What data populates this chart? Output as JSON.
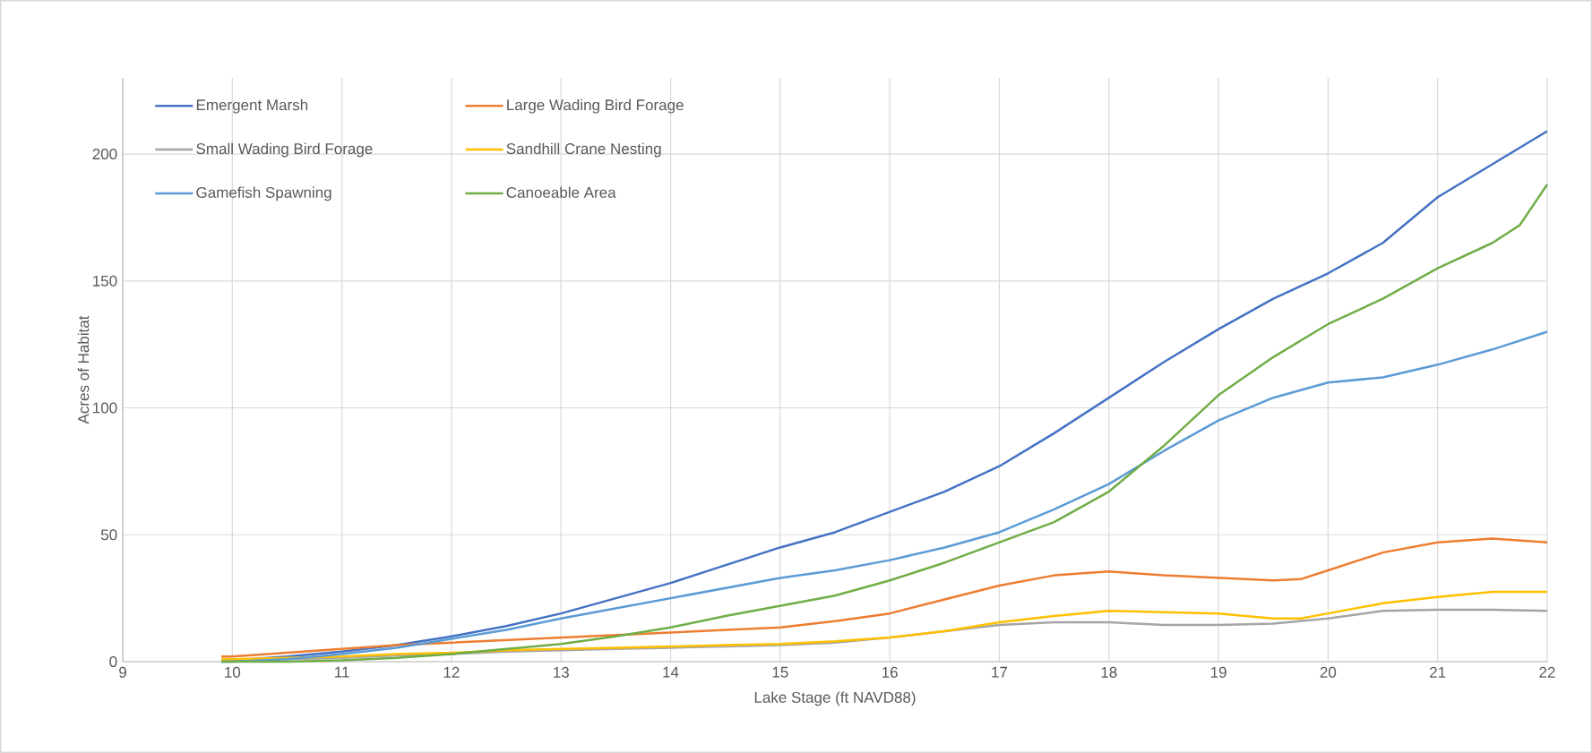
{
  "chart_data": {
    "type": "line",
    "xlabel": "Lake Stage (ft NAVD88)",
    "ylabel": "Acres of Habitat",
    "xlim": [
      9,
      22
    ],
    "xticks": [
      9,
      10,
      11,
      12,
      13,
      14,
      15,
      16,
      17,
      18,
      19,
      20,
      21,
      22
    ],
    "ylim": [
      0,
      230
    ],
    "yticks": [
      0,
      50,
      100,
      150,
      200
    ],
    "grid": true,
    "legend": "top left",
    "marker": "none",
    "line_style": "solid",
    "series": [
      {
        "name": "Emergent Marsh",
        "color": "#4472c4",
        "x": [
          9.9,
          10,
          10.5,
          11,
          11.5,
          12,
          12.5,
          13,
          13.5,
          14,
          14.5,
          15,
          15.5,
          16,
          16.5,
          17,
          17.5,
          18,
          18.5,
          19,
          19.5,
          20,
          20.5,
          21,
          21.5,
          22
        ],
        "values": [
          0,
          0.5,
          2,
          4,
          6.5,
          10,
          14,
          19,
          25,
          31,
          38,
          45,
          51,
          59,
          67,
          77,
          90,
          104,
          118,
          131,
          143,
          153,
          165,
          183,
          196,
          209
        ]
      },
      {
        "name": "Large Wading Bird Forage",
        "color": "#ed7d31",
        "x": [
          9.9,
          10,
          10.5,
          11,
          11.5,
          12,
          12.5,
          13,
          13.5,
          14,
          14.5,
          15,
          15.5,
          16,
          16.5,
          17,
          17.5,
          18,
          18.5,
          19,
          19.5,
          19.75,
          20,
          20.5,
          21,
          21.5,
          22
        ],
        "values": [
          2,
          2,
          3.5,
          5,
          6.5,
          7.5,
          8.5,
          9.5,
          10.5,
          11.5,
          12.5,
          13.5,
          16,
          19,
          24.5,
          30,
          34,
          35.5,
          34,
          33,
          32,
          32.5,
          36,
          43,
          47,
          48.5,
          47
        ]
      },
      {
        "name": "Small Wading Bird Forage",
        "color": "#a5a5a5",
        "x": [
          9.9,
          10,
          10.5,
          11,
          11.5,
          12,
          12.5,
          13,
          13.5,
          14,
          14.5,
          15,
          15.5,
          16,
          16.5,
          17,
          17.5,
          18,
          18.5,
          19,
          19.5,
          20,
          20.5,
          21,
          21.5,
          22
        ],
        "values": [
          0.5,
          0.5,
          1,
          1.5,
          2.5,
          3,
          4,
          4.5,
          5,
          5.5,
          6,
          6.5,
          7.5,
          9.5,
          12,
          14.5,
          15.5,
          15.5,
          14.5,
          14.5,
          15,
          17,
          20,
          20.5,
          20.5,
          20
        ]
      },
      {
        "name": "Sandhill Crane Nesting",
        "color": "#ffc000",
        "x": [
          9.9,
          10,
          10.5,
          11,
          11.5,
          12,
          12.5,
          13,
          13.5,
          14,
          14.5,
          15,
          15.5,
          16,
          16.5,
          17,
          17.5,
          18,
          18.5,
          19,
          19.5,
          19.75,
          20,
          20.5,
          21,
          21.5,
          22
        ],
        "values": [
          1,
          1,
          1.5,
          2,
          3,
          3.5,
          4.5,
          5,
          5.5,
          6,
          6.5,
          7,
          8,
          9.5,
          12,
          15.5,
          18,
          20,
          19.5,
          19,
          17,
          17,
          19,
          23,
          25.5,
          27.5,
          27.5
        ]
      },
      {
        "name": "Gamefish Spawning",
        "color": "#5b9bd5",
        "x": [
          9.9,
          10,
          10.5,
          11,
          11.5,
          12,
          12.5,
          13,
          13.5,
          14,
          14.5,
          15,
          15.5,
          16,
          16.5,
          17,
          17.5,
          18,
          18.5,
          19,
          19.5,
          20,
          20.5,
          21,
          21.5,
          22
        ],
        "values": [
          0,
          0,
          1,
          3,
          5.5,
          9,
          12.5,
          17,
          21,
          25,
          29,
          33,
          36,
          40,
          45,
          51,
          60,
          70,
          83,
          95,
          104,
          110,
          112,
          117,
          123,
          130
        ]
      },
      {
        "name": "Canoeable Area",
        "color": "#70ad47",
        "x": [
          9.9,
          10,
          10.5,
          11,
          11.5,
          12,
          12.5,
          13,
          13.5,
          14,
          14.5,
          15,
          15.5,
          16,
          16.5,
          17,
          17.5,
          18,
          18.5,
          19,
          19.5,
          20,
          20.5,
          21,
          21.5,
          21.75,
          22
        ],
        "values": [
          0,
          0,
          0,
          0.5,
          1.5,
          3,
          5,
          7,
          10,
          13.5,
          18,
          22,
          26,
          32,
          39,
          47,
          55,
          67,
          85,
          105,
          120,
          133,
          143,
          155,
          165,
          172,
          188
        ]
      }
    ]
  }
}
